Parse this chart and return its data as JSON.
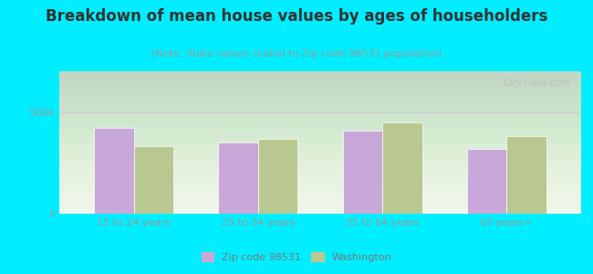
{
  "title": "Breakdown of mean house values by ages of householders",
  "subtitle": "(Note: State values scaled to Zip code 98531 population)",
  "categories": [
    "15 to 24 years",
    "25 to 34 years",
    "35 to 64 years",
    "65 years+"
  ],
  "zip_values": [
    420000,
    350000,
    410000,
    320000
  ],
  "wa_values": [
    330000,
    370000,
    450000,
    380000
  ],
  "zip_color": "#c8a8d8",
  "wa_color": "#b8c890",
  "bg_color": "#00eeff",
  "plot_bg_color": "#eef5e8",
  "ytick_labels": [
    "0",
    "500k"
  ],
  "ytick_values": [
    0,
    500000
  ],
  "ymax": 700000,
  "ymin": 0,
  "legend_zip": "Zip code 98531",
  "legend_wa": "Washington",
  "bar_width": 0.32,
  "title_fontsize": 12,
  "subtitle_fontsize": 8,
  "tick_fontsize": 8,
  "legend_fontsize": 8,
  "tick_color": "#999999",
  "watermark": "City-Data.com"
}
